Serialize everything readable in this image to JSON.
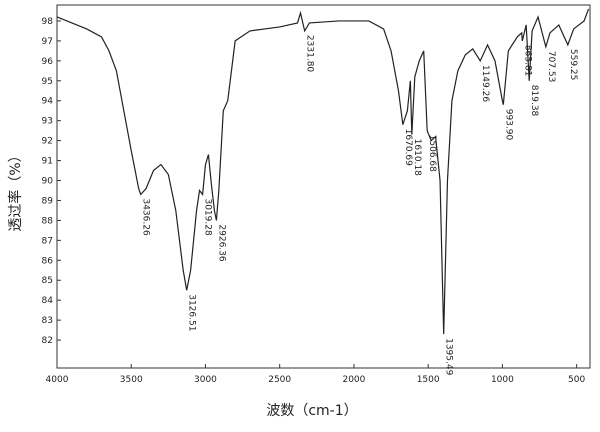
{
  "chart_data": {
    "type": "line",
    "xlabel": "波数（cm-1）",
    "ylabel": "透过率（%）",
    "xlim": [
      4000,
      410
    ],
    "ylim": [
      80.6,
      98.8
    ],
    "xticks": [
      4000,
      3500,
      3000,
      2500,
      2000,
      1500,
      1000,
      500
    ],
    "yticks": [
      82,
      83,
      84,
      85,
      86,
      87,
      88,
      89,
      90,
      91,
      92,
      93,
      94,
      95,
      96,
      97,
      98
    ],
    "color": "#222222",
    "series": [
      {
        "name": null,
        "x": [
          4000,
          3900,
          3800,
          3700,
          3650,
          3600,
          3550,
          3500,
          3450,
          3436.26,
          3400,
          3350,
          3300,
          3250,
          3200,
          3150,
          3126.51,
          3100,
          3060,
          3040,
          3019.28,
          3000,
          2980,
          2960,
          2940,
          2926.36,
          2910,
          2880,
          2850,
          2800,
          2700,
          2500,
          2380,
          2360,
          2331.8,
          2300,
          2100,
          1900,
          1800,
          1750,
          1700,
          1670.69,
          1640,
          1620,
          1610.18,
          1590,
          1560,
          1530,
          1506.68,
          1480,
          1450,
          1420,
          1395.49,
          1370,
          1340,
          1300,
          1250,
          1200,
          1149.26,
          1100,
          1050,
          1000,
          993.9,
          960,
          900,
          870,
          865.81,
          840,
          819.38,
          800,
          760,
          707.53,
          680,
          620,
          559.25,
          520,
          450,
          420
        ],
        "values": [
          98.2,
          97.9,
          97.6,
          97.2,
          96.5,
          95.5,
          93.5,
          91.5,
          89.6,
          89.3,
          89.6,
          90.5,
          90.8,
          90.3,
          88.5,
          85.5,
          84.5,
          85.5,
          88.5,
          89.5,
          89.3,
          90.8,
          91.3,
          89.8,
          88.5,
          88.0,
          89.5,
          93.5,
          94.0,
          97.0,
          97.5,
          97.7,
          97.9,
          98.4,
          97.5,
          97.9,
          98.0,
          98.0,
          97.6,
          96.5,
          94.5,
          92.8,
          93.5,
          95.0,
          92.3,
          95.2,
          96.0,
          96.5,
          92.5,
          92.0,
          92.2,
          90.0,
          82.3,
          90.0,
          94.0,
          95.5,
          96.3,
          96.6,
          96.0,
          96.8,
          96.0,
          94.0,
          93.8,
          96.5,
          97.2,
          97.4,
          97.0,
          97.8,
          95.0,
          97.5,
          98.2,
          96.7,
          97.4,
          97.8,
          96.8,
          97.6,
          98.0,
          98.6
        ]
      }
    ],
    "peak_labels": [
      3436.26,
      3126.51,
      3019.28,
      2926.36,
      {
        "value": 2331.8,
        "label": "2331.80"
      },
      1670.69,
      1610.18,
      1506.68,
      1395.49,
      1149.26,
      {
        "value": 993.9,
        "label": "993.90"
      },
      865.81,
      819.38,
      707.53,
      559.25
    ]
  }
}
